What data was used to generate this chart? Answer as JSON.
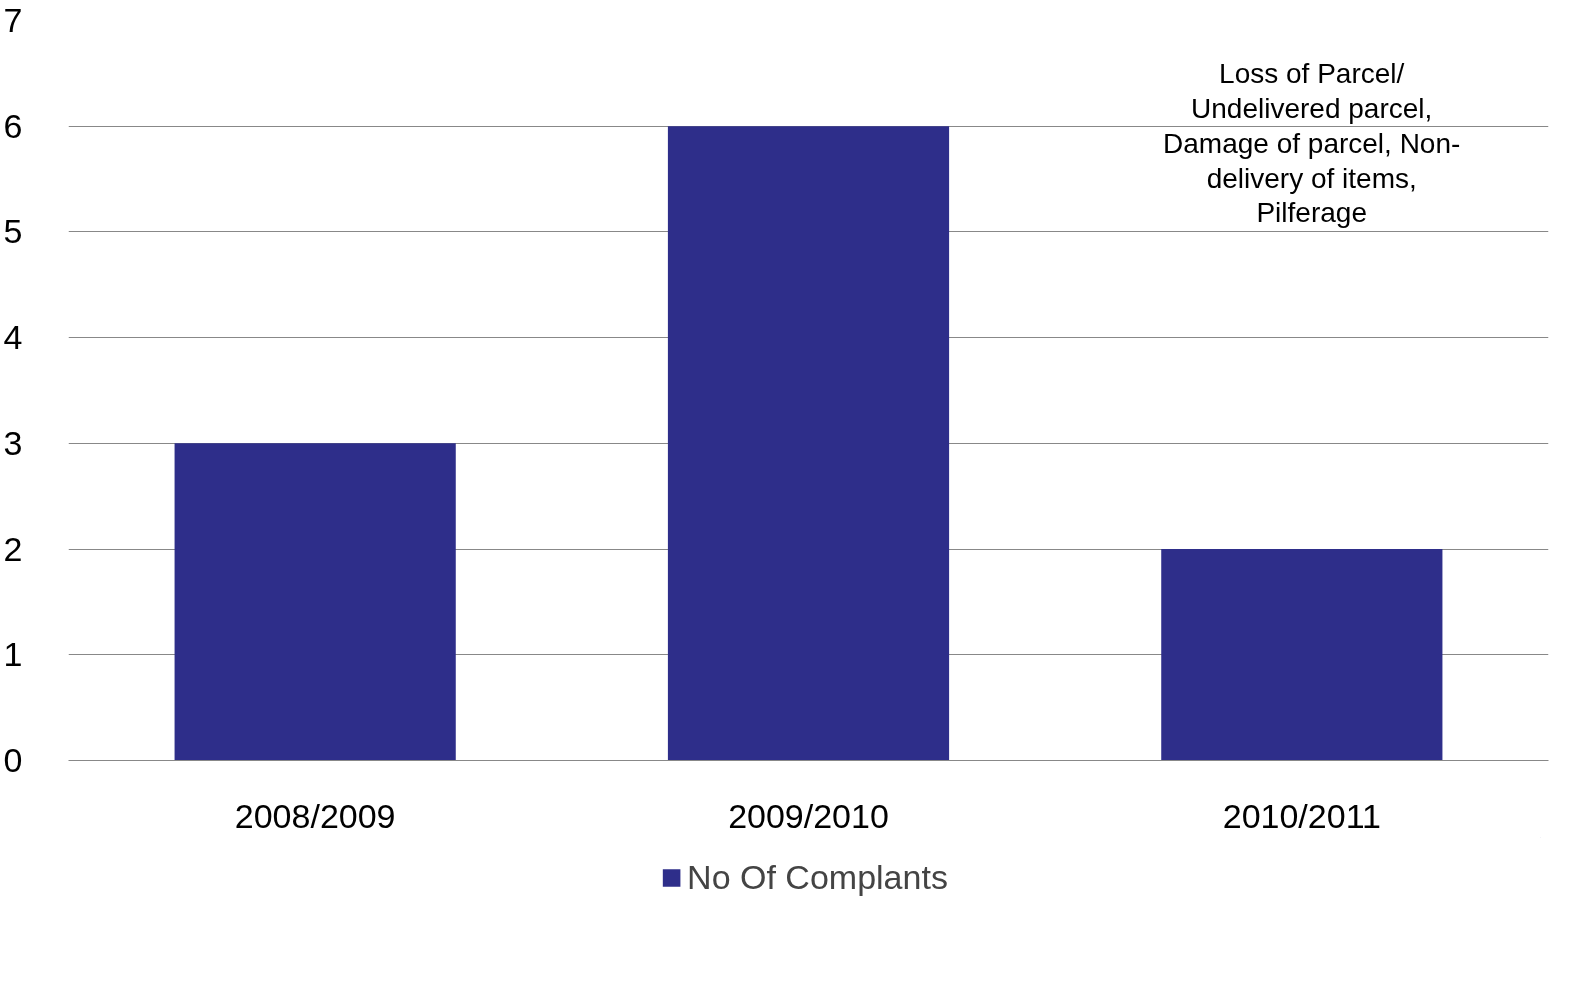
{
  "chart_data": {
    "type": "bar",
    "categories": [
      "2008/2009",
      "2009/2010",
      "2010/2011"
    ],
    "series": [
      {
        "name": "No Of Complants",
        "color": "#2e2e8a",
        "values": [
          3,
          6,
          2
        ]
      }
    ],
    "ylim": [
      0,
      7
    ],
    "yticks": [
      0,
      1,
      2,
      3,
      4,
      5,
      6,
      7
    ],
    "grid": "y",
    "legend": "bottom",
    "annotations": [
      "Loss of Parcel/ Undelivered parcel, Damage of parcel, Non-delivery of items, Pilferage"
    ]
  }
}
